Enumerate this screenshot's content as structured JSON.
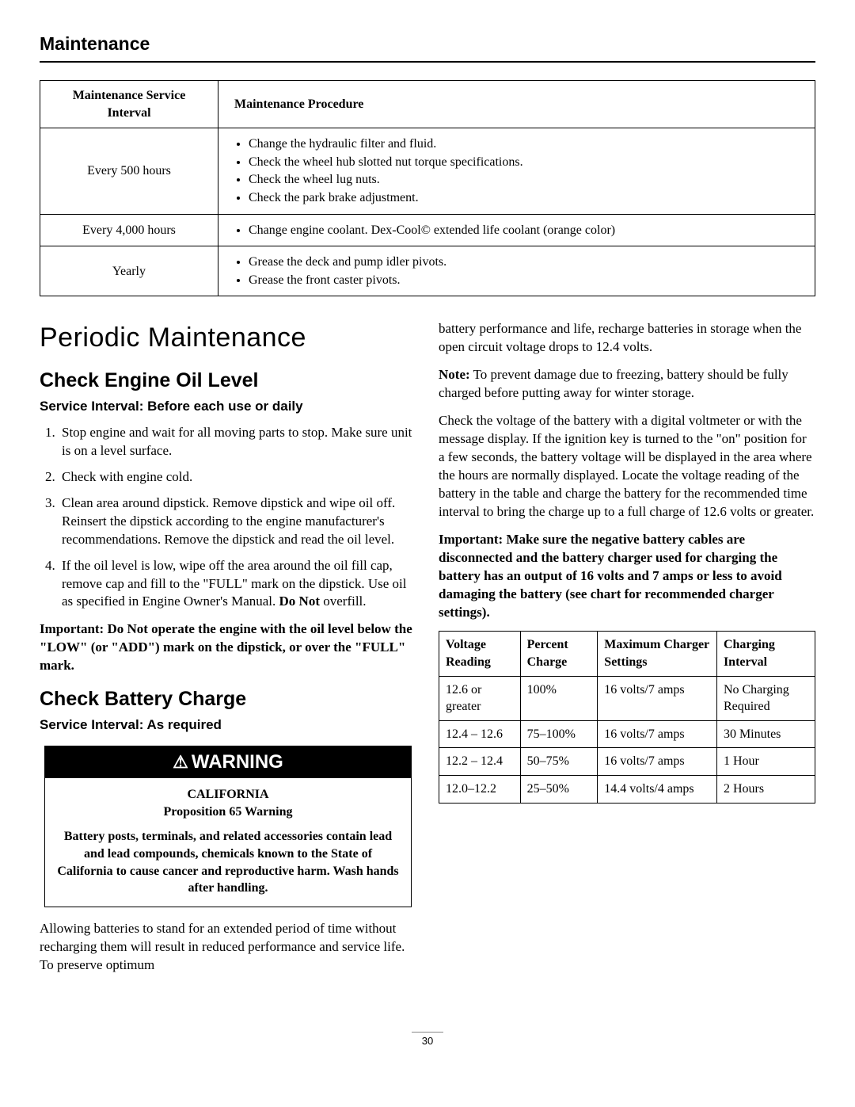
{
  "header": "Maintenance",
  "maint_table": {
    "headers": [
      "Maintenance Service Interval",
      "Maintenance Procedure"
    ],
    "rows": [
      {
        "interval": "Every 500 hours",
        "procedures": [
          "Change the hydraulic filter and fluid.",
          "Check the wheel hub slotted nut torque specifications.",
          "Check the wheel lug nuts.",
          "Check the park brake adjustment."
        ]
      },
      {
        "interval": "Every 4,000 hours",
        "procedures": [
          "Change engine coolant. Dex-Cool© extended life coolant (orange color)"
        ]
      },
      {
        "interval": "Yearly",
        "procedures": [
          "Grease the deck and pump idler pivots.",
          "Grease the front caster pivots."
        ]
      }
    ]
  },
  "section_title": "Periodic Maintenance",
  "oil": {
    "heading": "Check Engine Oil Level",
    "service_interval": "Service Interval: Before each use or daily",
    "steps": [
      "Stop engine and wait for all moving parts to stop. Make sure unit is on a level surface.",
      "Check with engine cold.",
      "Clean area around dipstick. Remove dipstick and wipe oil off. Reinsert the dipstick according to the engine manufacturer's recommendations. Remove the dipstick and read the oil level."
    ],
    "step4_a": "If the oil level is low, wipe off the area around the oil fill cap, remove cap and fill to the \"FULL\" mark on the dipstick. Use oil as specified in Engine Owner's Manual. ",
    "step4_donot": "Do Not",
    "step4_b": " overfill.",
    "important_label": "Important:",
    "important_text": " Do Not operate the engine with the oil level below the \"LOW\" (or \"ADD\") mark on the dipstick, or over the \"FULL\" mark."
  },
  "battery": {
    "heading": "Check Battery Charge",
    "service_interval": "Service Interval: As required",
    "warning_label": "WARNING",
    "california": "CALIFORNIA",
    "prop65": "Proposition 65 Warning",
    "warning_text": "Battery posts, terminals, and related accessories contain lead and lead compounds, chemicals known to the State of California to cause cancer and reproductive harm. Wash hands after handling.",
    "para1": "Allowing batteries to stand for an extended period of time without recharging them will result in reduced performance and service life. To preserve optimum",
    "para1_cont": "battery performance and life, recharge batteries in storage when the open circuit voltage drops to 12.4 volts.",
    "note_label": "Note:",
    "note_text": " To prevent damage due to freezing, battery should be fully charged before putting away for winter storage.",
    "para2": "Check the voltage of the battery with a digital voltmeter or with the message display. If the ignition key is turned to the \"on\" position for a few seconds, the battery voltage will be displayed in the area where the hours are normally displayed. Locate the voltage reading of the battery in the table and charge the battery for the recommended time interval to bring the charge up to a full charge of 12.6 volts or greater.",
    "important_label": "Important:",
    "important_text": " Make sure the negative battery cables are disconnected and the battery charger used for charging the battery has an output of 16 volts and 7 amps or less to avoid damaging the battery (see chart for recommended charger settings)."
  },
  "batt_table": {
    "headers": [
      "Voltage Reading",
      "Percent Charge",
      "Maximum Charger Settings",
      "Charging Interval"
    ],
    "rows": [
      [
        "12.6 or greater",
        "100%",
        "16 volts/7 amps",
        "No Charging Required"
      ],
      [
        "12.4 – 12.6",
        "75–100%",
        "16 volts/7 amps",
        "30 Minutes"
      ],
      [
        "12.2 – 12.4",
        "50–75%",
        "16 volts/7 amps",
        "1 Hour"
      ],
      [
        "12.0–12.2",
        "25–50%",
        "14.4 volts/4 amps",
        "2 Hours"
      ]
    ]
  },
  "page_number": "30"
}
